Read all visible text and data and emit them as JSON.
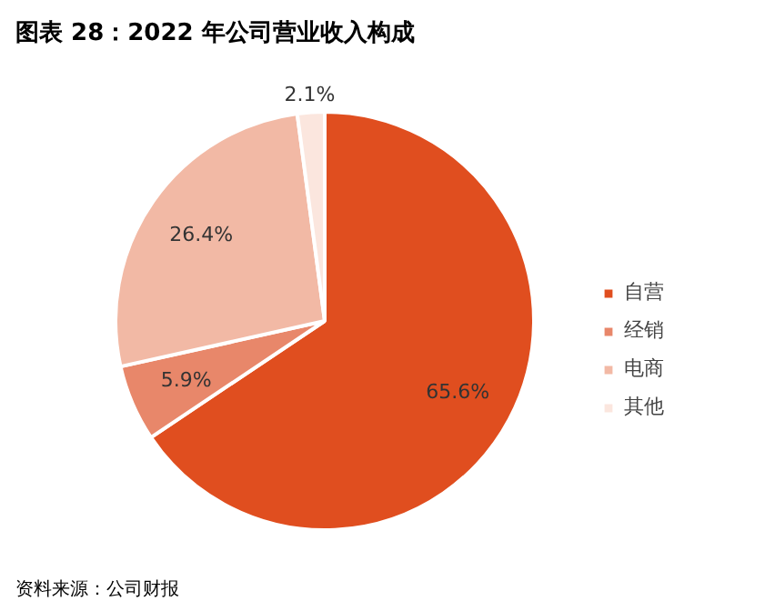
{
  "chart_data": {
    "type": "pie",
    "title": "图表 28：2022 年公司营业收入构成",
    "categories": [
      "自营",
      "经销",
      "电商",
      "其他"
    ],
    "values": [
      65.6,
      5.9,
      26.4,
      2.1
    ],
    "colors": [
      "#e04e1f",
      "#e8876a",
      "#f2b9a5",
      "#fbe6de"
    ],
    "value_labels": [
      "65.6%",
      "5.9%",
      "26.4%",
      "2.1%"
    ],
    "legend": "right",
    "annotations": [
      "资料来源：公司财报"
    ]
  }
}
